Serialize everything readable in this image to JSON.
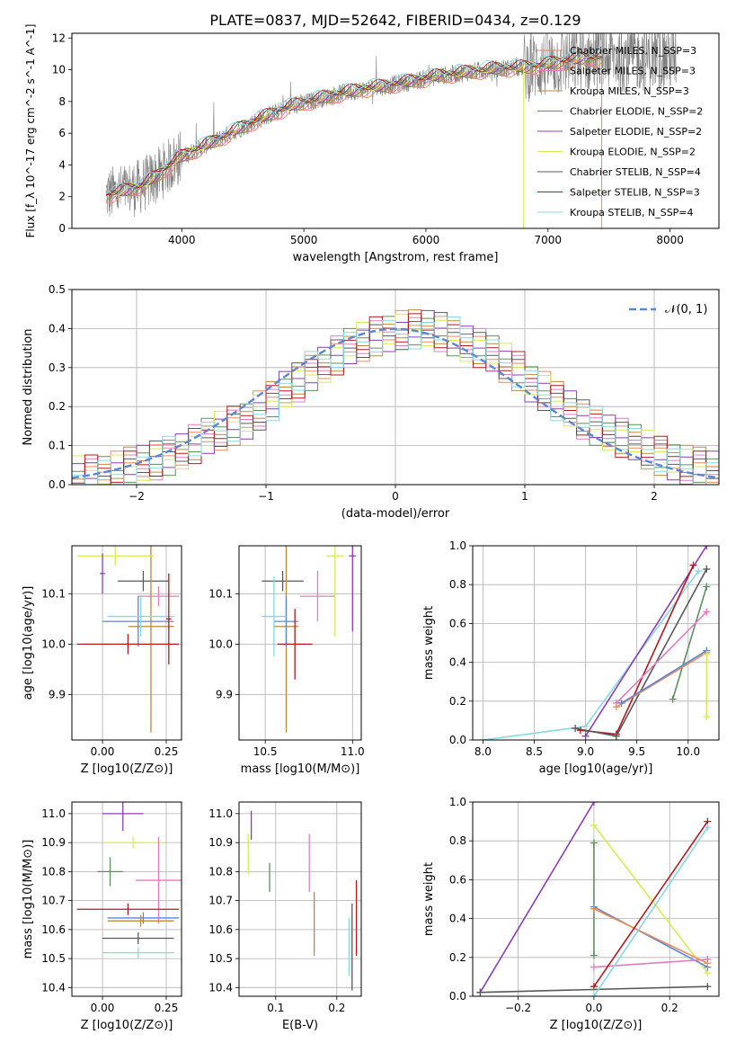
{
  "figure_title": "PLATE=0837, MJD=52642, FIBERID=0434, z=0.129",
  "model_colors": [
    "#ee8a5a",
    "#e27cbf",
    "#bd8a3a",
    "#5e8f5e",
    "#8b3fb4",
    "#d9ea52",
    "#595959",
    "#b5191f",
    "#84d9e2"
  ],
  "chart_data": [
    {
      "type": "line",
      "title": "PLATE=0837, MJD=52642, FIBERID=0434, z=0.129",
      "xlabel": "wavelength [Angstrom, rest frame]",
      "ylabel": "Flux [f_λ 10^-17 erg cm^-2 s^-1 A^-1]",
      "xlim": [
        3100,
        8400
      ],
      "ylim": [
        0,
        12.3
      ],
      "xticks": [
        "4000",
        "5000",
        "6000",
        "7000",
        "8000"
      ],
      "yticks": [
        "0",
        "2",
        "4",
        "6",
        "8",
        "10",
        "12"
      ],
      "grid": false,
      "legend_position": "top-right",
      "legend": [
        "Chabrier MILES, N_SSP=3",
        "Salpeter MILES, N_SSP=3",
        "Kroupa MILES, N_SSP=3",
        "Chabrier ELODIE, N_SSP=2",
        "Salpeter ELODIE, N_SSP=2",
        "Kroupa ELODIE, N_SSP=2",
        "Chabrier STELIB, N_SSP=4",
        "Salpeter STELIB, N_SSP=3",
        "Kroupa STELIB, N_SSP=4"
      ],
      "observed_color": "#808080",
      "continuum_x": [
        3380,
        3500,
        3650,
        3800,
        3950,
        4100,
        4300,
        4500,
        4700,
        4900,
        5100,
        5300,
        5500,
        5700,
        5900,
        6100,
        6300,
        6500,
        6700,
        6900,
        7100,
        7300,
        7500
      ],
      "continuum_y": [
        2.1,
        2.3,
        2.6,
        3.3,
        4.3,
        4.9,
        5.6,
        6.4,
        7.1,
        7.7,
        8.1,
        8.5,
        8.8,
        9.0,
        9.3,
        9.6,
        9.8,
        10.0,
        10.1,
        10.2,
        10.5,
        10.7,
        10.8
      ]
    },
    {
      "type": "histogram",
      "xlabel": "(data-model)/error",
      "ylabel": "Normed distribution",
      "xlim": [
        -2.5,
        2.5
      ],
      "ylim": [
        0,
        0.5
      ],
      "xticks": [
        "−2",
        "−1",
        "0",
        "1",
        "2"
      ],
      "yticks": [
        "0.0",
        "0.1",
        "0.2",
        "0.3",
        "0.4",
        "0.5"
      ],
      "grid": true,
      "legend_position": "top-right",
      "reference_curve": {
        "label": "𝒩(0, 1)",
        "color": "#5b87d6",
        "mean": 0,
        "sigma": 1
      },
      "bin_width": 0.1,
      "bin_start": -2.5,
      "density": [
        0.024,
        0.026,
        0.032,
        0.036,
        0.046,
        0.051,
        0.062,
        0.074,
        0.09,
        0.104,
        0.12,
        0.138,
        0.151,
        0.167,
        0.19,
        0.214,
        0.24,
        0.262,
        0.291,
        0.312,
        0.331,
        0.35,
        0.366,
        0.38,
        0.391,
        0.396,
        0.398,
        0.396,
        0.391,
        0.38,
        0.366,
        0.35,
        0.331,
        0.312,
        0.291,
        0.262,
        0.24,
        0.214,
        0.19,
        0.167,
        0.151,
        0.138,
        0.12,
        0.104,
        0.09,
        0.074,
        0.062,
        0.051,
        0.046,
        0.036
      ]
    },
    {
      "type": "scatter",
      "xlabel": "Z [log10(Z/Z⊙)]",
      "ylabel": "age [log10(age/yr)]",
      "xlim": [
        -0.12,
        0.31
      ],
      "ylim": [
        9.81,
        10.195
      ],
      "xticks": [
        "0.00",
        "0.25"
      ],
      "yticks": [
        "9.9",
        "10.0",
        "10.1"
      ],
      "grid": true,
      "points": [
        {
          "x": 0.16,
          "y": 10.125,
          "xerr": 0.1,
          "yerr": 0.02,
          "color": "#595959"
        },
        {
          "x": 0.22,
          "y": 10.095,
          "xerr": 0.08,
          "yerr": 0.02,
          "color": "#e27cbf"
        },
        {
          "x": 0.19,
          "y": 10.035,
          "xerr": 0.09,
          "yerr": 0.21,
          "color": "#bd8a3a"
        },
        {
          "x": 0.14,
          "y": 10.045,
          "xerr": 0.14,
          "yerr": 0.05,
          "color": "#5b87d6"
        },
        {
          "x": 0.05,
          "y": 10.175,
          "xerr": 0.15,
          "yerr": 0.02,
          "color": "#d9ea52"
        },
        {
          "x": 0.15,
          "y": 10.055,
          "xerr": 0.13,
          "yerr": 0.04,
          "color": "#84d9e2"
        },
        {
          "x": 0.1,
          "y": 10.0,
          "xerr": 0.2,
          "yerr": 0.02,
          "color": "#b5191f"
        },
        {
          "x": 0.0,
          "y": 10.14,
          "xerr": 0.01,
          "yerr": 0.04,
          "color": "#8b3fb4"
        },
        {
          "x": 0.26,
          "y": 10.05,
          "xerr": 0.01,
          "yerr": 0.09,
          "color": "#b5191f"
        }
      ]
    },
    {
      "type": "scatter",
      "xlabel": "mass [log10(M/M⊙)]",
      "ylabel": "",
      "xlim": [
        10.35,
        11.05
      ],
      "ylim": [
        9.81,
        10.195
      ],
      "xticks": [
        "10.5",
        "11.0"
      ],
      "yticks": [
        "9.9",
        "10.0",
        "10.1"
      ],
      "grid": true,
      "points": [
        {
          "x": 10.6,
          "y": 10.125,
          "xerr": 0.12,
          "yerr": 0.02,
          "color": "#595959"
        },
        {
          "x": 10.8,
          "y": 10.095,
          "xerr": 0.1,
          "yerr": 0.05,
          "color": "#e27cbf"
        },
        {
          "x": 10.62,
          "y": 10.035,
          "xerr": 0.07,
          "yerr": 0.21,
          "color": "#bd8a3a"
        },
        {
          "x": 10.62,
          "y": 10.045,
          "xerr": 0.07,
          "yerr": 0.05,
          "color": "#5b87d6"
        },
        {
          "x": 10.9,
          "y": 10.175,
          "xerr": 0.05,
          "yerr": 0.16,
          "color": "#d9ea52"
        },
        {
          "x": 10.55,
          "y": 10.055,
          "xerr": 0.07,
          "yerr": 0.08,
          "color": "#84d9e2"
        },
        {
          "x": 10.67,
          "y": 10.0,
          "xerr": 0.1,
          "yerr": 0.07,
          "color": "#b5191f"
        },
        {
          "x": 11.0,
          "y": 10.175,
          "xerr": 0.02,
          "yerr": 0.15,
          "color": "#8b3fb4"
        }
      ]
    },
    {
      "type": "line",
      "xlabel": "age [log10(age/yr)]",
      "ylabel": "mass weight",
      "xlim": [
        7.9,
        10.3
      ],
      "ylim": [
        0,
        1.0
      ],
      "xticks": [
        "8.0",
        "8.5",
        "9.0",
        "9.5",
        "10.0"
      ],
      "yticks": [
        "0.0",
        "0.2",
        "0.4",
        "0.6",
        "0.8",
        "1.0"
      ],
      "grid": true,
      "series": [
        {
          "color": "#84d9e2",
          "x": [
            8.0,
            9.0,
            10.1
          ],
          "y": [
            0.0,
            0.07,
            0.87
          ]
        },
        {
          "color": "#8b3fb4",
          "x": [
            9.0,
            10.18
          ],
          "y": [
            0.02,
            1.0
          ]
        },
        {
          "color": "#b5191f",
          "x": [
            8.95,
            9.3,
            10.05
          ],
          "y": [
            0.05,
            0.03,
            0.9
          ]
        },
        {
          "color": "#595959",
          "x": [
            8.9,
            9.3,
            10.18
          ],
          "y": [
            0.06,
            0.02,
            0.88
          ]
        },
        {
          "color": "#5e8f5e",
          "x": [
            9.85,
            10.18
          ],
          "y": [
            0.21,
            0.79
          ]
        },
        {
          "color": "#e27cbf",
          "x": [
            9.3,
            10.18
          ],
          "y": [
            0.19,
            0.66
          ]
        },
        {
          "color": "#ee8a5a",
          "x": [
            9.3,
            10.18
          ],
          "y": [
            0.17,
            0.45
          ]
        },
        {
          "color": "#5b87d6",
          "x": [
            9.35,
            10.18
          ],
          "y": [
            0.19,
            0.46
          ]
        },
        {
          "color": "#d9ea52",
          "x": [
            10.18,
            10.18
          ],
          "y": [
            0.12,
            0.44
          ]
        }
      ]
    },
    {
      "type": "scatter",
      "xlabel": "Z [log10(Z/Z⊙)]",
      "ylabel": "mass [log10(M/M⊙)]",
      "xlim": [
        -0.12,
        0.31
      ],
      "ylim": [
        10.37,
        11.04
      ],
      "xticks": [
        "0.00",
        "0.25"
      ],
      "yticks": [
        "10.4",
        "10.5",
        "10.6",
        "10.7",
        "10.8",
        "10.9",
        "11.0"
      ],
      "grid": true,
      "points": [
        {
          "x": 0.08,
          "y": 11.0,
          "xerr": 0.08,
          "yerr": 0.06,
          "color": "#8b3fb4"
        },
        {
          "x": 0.12,
          "y": 10.9,
          "xerr": 0.12,
          "yerr": 0.02,
          "color": "#d9ea52"
        },
        {
          "x": 0.03,
          "y": 10.8,
          "xerr": 0.05,
          "yerr": 0.05,
          "color": "#5e8f5e"
        },
        {
          "x": 0.22,
          "y": 10.77,
          "xerr": 0.09,
          "yerr": 0.15,
          "color": "#e27cbf"
        },
        {
          "x": 0.1,
          "y": 10.67,
          "xerr": 0.2,
          "yerr": 0.02,
          "color": "#b5191f"
        },
        {
          "x": 0.16,
          "y": 10.64,
          "xerr": 0.14,
          "yerr": 0.02,
          "color": "#5b87d6"
        },
        {
          "x": 0.15,
          "y": 10.63,
          "xerr": 0.13,
          "yerr": 0.02,
          "color": "#bd8a3a"
        },
        {
          "x": 0.14,
          "y": 10.57,
          "xerr": 0.14,
          "yerr": 0.02,
          "color": "#595959"
        },
        {
          "x": 0.14,
          "y": 10.52,
          "xerr": 0.14,
          "yerr": 0.02,
          "color": "#84d9e2"
        }
      ]
    },
    {
      "type": "scatter",
      "xlabel": "E(B-V)",
      "ylabel": "",
      "xlim": [
        0.04,
        0.24
      ],
      "ylim": [
        10.37,
        11.04
      ],
      "xticks": [
        "0.1",
        "0.2"
      ],
      "yticks": [
        "10.4",
        "10.5",
        "10.6",
        "10.7",
        "10.8",
        "10.9",
        "11.0"
      ],
      "grid": true,
      "points": [
        {
          "x": 0.06,
          "y": 10.96,
          "xerr": 0.0,
          "yerr": 0.05,
          "color": "#8b3fb4"
        },
        {
          "x": 0.055,
          "y": 10.86,
          "xerr": 0.0,
          "yerr": 0.07,
          "color": "#d9ea52"
        },
        {
          "x": 0.09,
          "y": 10.78,
          "xerr": 0.0,
          "yerr": 0.05,
          "color": "#5e8f5e"
        },
        {
          "x": 0.155,
          "y": 10.83,
          "xerr": 0.0,
          "yerr": 0.1,
          "color": "#e27cbf"
        },
        {
          "x": 0.163,
          "y": 10.62,
          "xerr": 0.0,
          "yerr": 0.11,
          "color": "#bd8a3a"
        },
        {
          "x": 0.22,
          "y": 10.54,
          "xerr": 0.0,
          "yerr": 0.1,
          "color": "#84d9e2"
        },
        {
          "x": 0.225,
          "y": 10.54,
          "xerr": 0.0,
          "yerr": 0.15,
          "color": "#595959"
        },
        {
          "x": 0.232,
          "y": 10.64,
          "xerr": 0.0,
          "yerr": 0.13,
          "color": "#b5191f"
        }
      ]
    },
    {
      "type": "line",
      "xlabel": "Z [log10(Z/Z⊙)]",
      "ylabel": "mass weight",
      "xlim": [
        -0.32,
        0.33
      ],
      "ylim": [
        0,
        1.0
      ],
      "xticks": [
        "−0.2",
        "0.0",
        "0.2"
      ],
      "yticks": [
        "0.0",
        "0.2",
        "0.4",
        "0.6",
        "0.8",
        "1.0"
      ],
      "grid": true,
      "series": [
        {
          "color": "#8b3fb4",
          "x": [
            -0.3,
            0.0
          ],
          "y": [
            0.02,
            1.0
          ]
        },
        {
          "color": "#d9ea52",
          "x": [
            0.0,
            0.3
          ],
          "y": [
            0.88,
            0.12
          ]
        },
        {
          "color": "#5e8f5e",
          "x": [
            0.0,
            0.0
          ],
          "y": [
            0.21,
            0.79
          ]
        },
        {
          "color": "#5b87d6",
          "x": [
            0.0,
            0.3
          ],
          "y": [
            0.46,
            0.15
          ]
        },
        {
          "color": "#ee8a5a",
          "x": [
            0.0,
            0.3
          ],
          "y": [
            0.45,
            0.17
          ]
        },
        {
          "color": "#e27cbf",
          "x": [
            0.0,
            0.3
          ],
          "y": [
            0.15,
            0.19
          ]
        },
        {
          "color": "#b5191f",
          "x": [
            0.0,
            0.3
          ],
          "y": [
            0.05,
            0.9
          ]
        },
        {
          "color": "#595959",
          "x": [
            -0.3,
            0.3
          ],
          "y": [
            0.02,
            0.05
          ]
        },
        {
          "color": "#84d9e2",
          "x": [
            0.0,
            0.3
          ],
          "y": [
            0.0,
            0.87
          ]
        }
      ]
    }
  ]
}
